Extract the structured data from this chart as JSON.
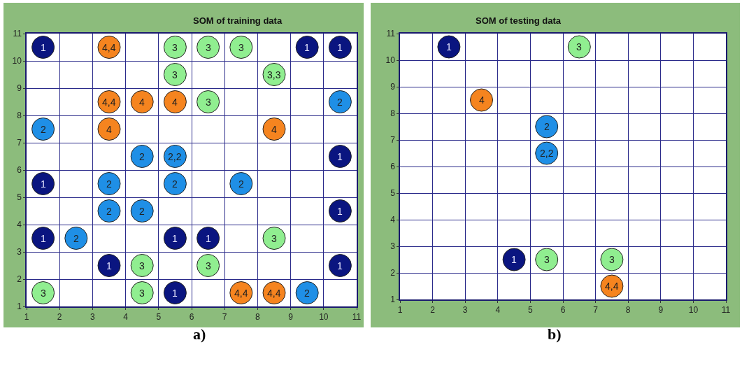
{
  "chart_data": [
    {
      "type": "scatter",
      "title": "SOM of training data",
      "xlim": [
        1,
        11
      ],
      "ylim": [
        1,
        11
      ],
      "xticks": [
        1,
        2,
        3,
        4,
        5,
        6,
        7,
        8,
        9,
        10,
        11
      ],
      "yticks": [
        1,
        2,
        3,
        4,
        5,
        6,
        7,
        8,
        9,
        10,
        11
      ],
      "grid": true,
      "marker": "circle",
      "annotations": [
        "a)",
        {
          "text": "1",
          "x": 1.5,
          "y": 10.5
        },
        {
          "text": "1",
          "x": 9.5,
          "y": 10.5
        },
        {
          "text": "1",
          "x": 10.5,
          "y": 10.5
        },
        {
          "text": "1",
          "x": 10.5,
          "y": 6.5
        },
        {
          "text": "1",
          "x": 1.5,
          "y": 5.5
        },
        {
          "text": "1",
          "x": 10.5,
          "y": 4.5
        },
        {
          "text": "1",
          "x": 1.5,
          "y": 3.5
        },
        {
          "text": "1",
          "x": 5.5,
          "y": 3.5
        },
        {
          "text": "1",
          "x": 6.5,
          "y": 3.5
        },
        {
          "text": "1",
          "x": 3.5,
          "y": 2.5
        },
        {
          "text": "1",
          "x": 10.5,
          "y": 2.5
        },
        {
          "text": "1",
          "x": 5.5,
          "y": 1.5
        },
        {
          "text": "2",
          "x": 10.5,
          "y": 8.5
        },
        {
          "text": "2",
          "x": 1.5,
          "y": 7.5
        },
        {
          "text": "2",
          "x": 4.5,
          "y": 6.5
        },
        {
          "text": "2,2",
          "x": 5.5,
          "y": 6.5
        },
        {
          "text": "2",
          "x": 3.5,
          "y": 5.5
        },
        {
          "text": "2",
          "x": 5.5,
          "y": 5.5
        },
        {
          "text": "2",
          "x": 7.5,
          "y": 5.5
        },
        {
          "text": "2",
          "x": 3.5,
          "y": 4.5
        },
        {
          "text": "2",
          "x": 4.5,
          "y": 4.5
        },
        {
          "text": "2",
          "x": 2.5,
          "y": 3.5
        },
        {
          "text": "2",
          "x": 9.5,
          "y": 1.5
        },
        {
          "text": "3",
          "x": 5.5,
          "y": 10.5
        },
        {
          "text": "3",
          "x": 6.5,
          "y": 10.5
        },
        {
          "text": "3",
          "x": 7.5,
          "y": 10.5
        },
        {
          "text": "3",
          "x": 5.5,
          "y": 9.5
        },
        {
          "text": "3,3",
          "x": 8.5,
          "y": 9.5
        },
        {
          "text": "3",
          "x": 6.5,
          "y": 8.5
        },
        {
          "text": "3",
          "x": 8.5,
          "y": 3.5
        },
        {
          "text": "3",
          "x": 4.5,
          "y": 2.5
        },
        {
          "text": "3",
          "x": 6.5,
          "y": 2.5
        },
        {
          "text": "3",
          "x": 1.5,
          "y": 1.5
        },
        {
          "text": "3",
          "x": 4.5,
          "y": 1.5
        },
        {
          "text": "4,4",
          "x": 3.5,
          "y": 10.5
        },
        {
          "text": "4,4",
          "x": 3.5,
          "y": 8.5
        },
        {
          "text": "4",
          "x": 4.5,
          "y": 8.5
        },
        {
          "text": "4",
          "x": 5.5,
          "y": 8.5
        },
        {
          "text": "4",
          "x": 3.5,
          "y": 7.5
        },
        {
          "text": "4",
          "x": 8.5,
          "y": 7.5
        },
        {
          "text": "4,4",
          "x": 7.5,
          "y": 1.5
        },
        {
          "text": "4,4",
          "x": 8.5,
          "y": 1.5
        }
      ],
      "series": [
        {
          "color": "#0a1580",
          "x": [
            1.5,
            9.5,
            10.5,
            10.5,
            1.5,
            10.5,
            1.5,
            5.5,
            6.5,
            3.5,
            10.5,
            5.5
          ],
          "values": [
            10.5,
            10.5,
            10.5,
            6.5,
            5.5,
            4.5,
            3.5,
            3.5,
            3.5,
            2.5,
            2.5,
            1.5
          ]
        },
        {
          "color": "#1f8fe6",
          "x": [
            10.5,
            1.5,
            4.5,
            5.5,
            3.5,
            5.5,
            7.5,
            3.5,
            4.5,
            2.5,
            9.5
          ],
          "values": [
            8.5,
            7.5,
            6.5,
            6.5,
            5.5,
            5.5,
            5.5,
            4.5,
            4.5,
            3.5,
            1.5
          ]
        },
        {
          "color": "#90ee90",
          "x": [
            5.5,
            6.5,
            7.5,
            5.5,
            8.5,
            6.5,
            8.5,
            4.5,
            6.5,
            1.5,
            4.5
          ],
          "values": [
            10.5,
            10.5,
            10.5,
            9.5,
            9.5,
            8.5,
            3.5,
            2.5,
            2.5,
            1.5,
            1.5
          ]
        },
        {
          "color": "#f5841f",
          "x": [
            3.5,
            3.5,
            4.5,
            5.5,
            3.5,
            8.5,
            7.5,
            8.5
          ],
          "values": [
            10.5,
            8.5,
            8.5,
            8.5,
            7.5,
            7.5,
            1.5,
            1.5
          ]
        }
      ]
    },
    {
      "type": "scatter",
      "title": "SOM of testing data",
      "xlim": [
        1,
        11
      ],
      "ylim": [
        1,
        11
      ],
      "xticks": [
        1,
        2,
        3,
        4,
        5,
        6,
        7,
        8,
        9,
        10,
        11
      ],
      "yticks": [
        1,
        2,
        3,
        4,
        5,
        6,
        7,
        8,
        9,
        10,
        11
      ],
      "grid": true,
      "marker": "circle",
      "annotations": [
        "b)",
        {
          "text": "1",
          "x": 2.5,
          "y": 10.5
        },
        {
          "text": "1",
          "x": 4.5,
          "y": 2.5
        },
        {
          "text": "2",
          "x": 5.5,
          "y": 7.5
        },
        {
          "text": "2,2",
          "x": 5.5,
          "y": 6.5
        },
        {
          "text": "3",
          "x": 6.5,
          "y": 10.5
        },
        {
          "text": "3",
          "x": 5.5,
          "y": 2.5
        },
        {
          "text": "3",
          "x": 7.5,
          "y": 2.5
        },
        {
          "text": "4",
          "x": 3.5,
          "y": 8.5
        },
        {
          "text": "4,4",
          "x": 7.5,
          "y": 1.5
        }
      ],
      "series": [
        {
          "color": "#0a1580",
          "x": [
            2.5,
            4.5
          ],
          "values": [
            10.5,
            2.5
          ]
        },
        {
          "color": "#1f8fe6",
          "x": [
            5.5,
            5.5
          ],
          "values": [
            7.5,
            6.5
          ]
        },
        {
          "color": "#90ee90",
          "x": [
            6.5,
            5.5,
            7.5
          ],
          "values": [
            10.5,
            2.5,
            2.5
          ]
        },
        {
          "color": "#f5841f",
          "x": [
            3.5,
            7.5
          ],
          "values": [
            8.5,
            1.5
          ]
        }
      ]
    }
  ]
}
